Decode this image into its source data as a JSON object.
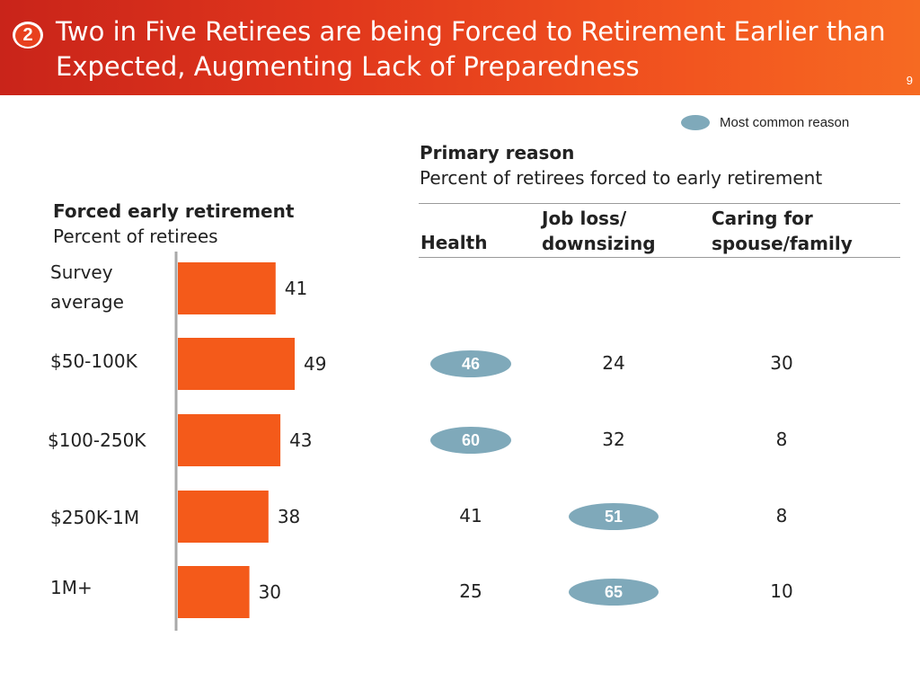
{
  "header": {
    "badge_number": "2",
    "title": "Two in Five Retirees are being Forced to Retirement Earlier than Expected, Augmenting Lack of Preparedness",
    "page_number": "9"
  },
  "colors": {
    "header_start": "#c9241a",
    "header_end": "#f66a22",
    "bar": "#f45a1a",
    "highlight": "#7fa9ba"
  },
  "legend": {
    "label": "Most common reason"
  },
  "left_heading": {
    "title": "Forced early retirement",
    "subtitle": "Percent of retirees"
  },
  "right_heading": {
    "title": "Primary reason",
    "subtitle": "Percent of retirees forced to early retirement"
  },
  "chart_data": [
    {
      "type": "bar",
      "orientation": "horizontal",
      "title": "Forced early retirement",
      "subtitle": "Percent of retirees",
      "categories": [
        "Survey average",
        "$50-100K",
        "$100-250K",
        "$250K-1M",
        "1M+"
      ],
      "values": [
        41,
        49,
        43,
        38,
        30
      ],
      "xlim": [
        0,
        70
      ],
      "grid": false
    },
    {
      "type": "table",
      "title": "Primary reason",
      "subtitle": "Percent of retirees forced to early retirement",
      "columns": [
        "Health",
        "Job loss/ downsizing",
        "Caring for spouse/family"
      ],
      "row_labels": [
        "$50-100K",
        "$100-250K",
        "$250K-1M",
        "1M+"
      ],
      "rows": [
        {
          "values": [
            "46",
            "24",
            "30"
          ],
          "highlight": 0
        },
        {
          "values": [
            "60",
            "32",
            "8"
          ],
          "highlight": 0
        },
        {
          "values": [
            "41",
            "51",
            "8"
          ],
          "highlight": 1
        },
        {
          "values": [
            "25",
            "65",
            "10"
          ],
          "highlight": 1
        }
      ]
    }
  ]
}
